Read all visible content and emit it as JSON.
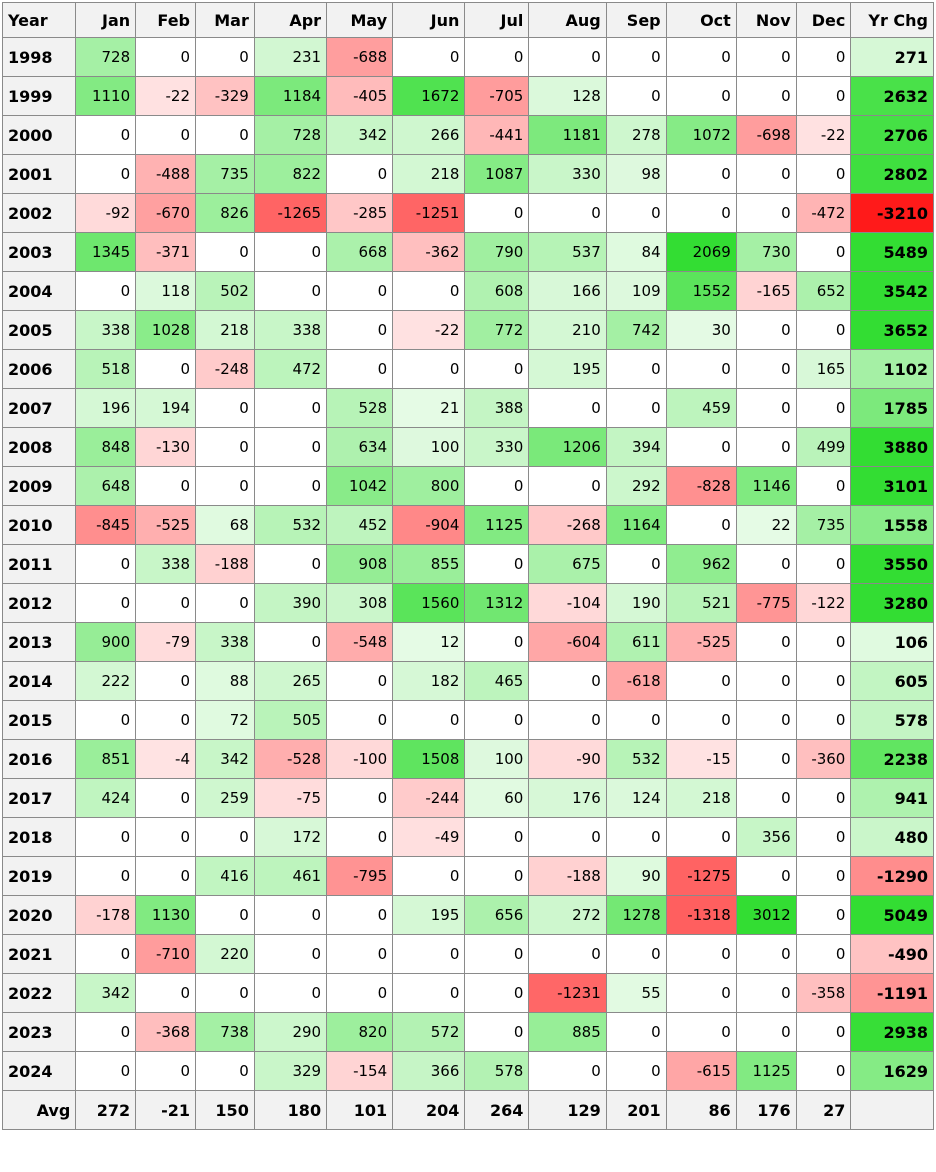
{
  "headers": [
    "Year",
    "Jan",
    "Feb",
    "Mar",
    "Apr",
    "May",
    "Jun",
    "Jul",
    "Aug",
    "Sep",
    "Oct",
    "Nov",
    "Dec",
    "Yr Chg"
  ],
  "rows": [
    {
      "year": "1998",
      "months": [
        728,
        0,
        0,
        231,
        -688,
        0,
        0,
        0,
        0,
        0,
        0,
        0
      ],
      "yr_chg": 271
    },
    {
      "year": "1999",
      "months": [
        1110,
        -22,
        -329,
        1184,
        -405,
        1672,
        -705,
        128,
        0,
        0,
        0,
        0
      ],
      "yr_chg": 2632
    },
    {
      "year": "2000",
      "months": [
        0,
        0,
        0,
        728,
        342,
        266,
        -441,
        1181,
        278,
        1072,
        -698,
        -22
      ],
      "yr_chg": 2706
    },
    {
      "year": "2001",
      "months": [
        0,
        -488,
        735,
        822,
        0,
        218,
        1087,
        330,
        98,
        0,
        0,
        0
      ],
      "yr_chg": 2802
    },
    {
      "year": "2002",
      "months": [
        -92,
        -670,
        826,
        -1265,
        -285,
        -1251,
        0,
        0,
        0,
        0,
        0,
        -472
      ],
      "yr_chg": -3210
    },
    {
      "year": "2003",
      "months": [
        1345,
        -371,
        0,
        0,
        668,
        -362,
        790,
        537,
        84,
        2069,
        730,
        0
      ],
      "yr_chg": 5489
    },
    {
      "year": "2004",
      "months": [
        0,
        118,
        502,
        0,
        0,
        0,
        608,
        166,
        109,
        1552,
        -165,
        652
      ],
      "yr_chg": 3542
    },
    {
      "year": "2005",
      "months": [
        338,
        1028,
        218,
        338,
        0,
        -22,
        772,
        210,
        742,
        30,
        0,
        0
      ],
      "yr_chg": 3652
    },
    {
      "year": "2006",
      "months": [
        518,
        0,
        -248,
        472,
        0,
        0,
        0,
        195,
        0,
        0,
        0,
        165
      ],
      "yr_chg": 1102
    },
    {
      "year": "2007",
      "months": [
        196,
        194,
        0,
        0,
        528,
        21,
        388,
        0,
        0,
        459,
        0,
        0
      ],
      "yr_chg": 1785
    },
    {
      "year": "2008",
      "months": [
        848,
        -130,
        0,
        0,
        634,
        100,
        330,
        1206,
        394,
        0,
        0,
        499
      ],
      "yr_chg": 3880
    },
    {
      "year": "2009",
      "months": [
        648,
        0,
        0,
        0,
        1042,
        800,
        0,
        0,
        292,
        -828,
        1146,
        0
      ],
      "yr_chg": 3101
    },
    {
      "year": "2010",
      "months": [
        -845,
        -525,
        68,
        532,
        452,
        -904,
        1125,
        -268,
        1164,
        0,
        22,
        735
      ],
      "yr_chg": 1558
    },
    {
      "year": "2011",
      "months": [
        0,
        338,
        -188,
        0,
        908,
        855,
        0,
        675,
        0,
        962,
        0,
        0
      ],
      "yr_chg": 3550
    },
    {
      "year": "2012",
      "months": [
        0,
        0,
        0,
        390,
        308,
        1560,
        1312,
        -104,
        190,
        521,
        -775,
        -122
      ],
      "yr_chg": 3280
    },
    {
      "year": "2013",
      "months": [
        900,
        -79,
        338,
        0,
        -548,
        12,
        0,
        -604,
        611,
        -525,
        0,
        0
      ],
      "yr_chg": 106
    },
    {
      "year": "2014",
      "months": [
        222,
        0,
        88,
        265,
        0,
        182,
        465,
        0,
        -618,
        0,
        0,
        0
      ],
      "yr_chg": 605
    },
    {
      "year": "2015",
      "months": [
        0,
        0,
        72,
        505,
        0,
        0,
        0,
        0,
        0,
        0,
        0,
        0
      ],
      "yr_chg": 578
    },
    {
      "year": "2016",
      "months": [
        851,
        -4,
        342,
        -528,
        -100,
        1508,
        100,
        -90,
        532,
        -15,
        0,
        -360
      ],
      "yr_chg": 2238
    },
    {
      "year": "2017",
      "months": [
        424,
        0,
        259,
        -75,
        0,
        -244,
        60,
        176,
        124,
        218,
        0,
        0
      ],
      "yr_chg": 941
    },
    {
      "year": "2018",
      "months": [
        0,
        0,
        0,
        172,
        0,
        -49,
        0,
        0,
        0,
        0,
        356,
        0
      ],
      "yr_chg": 480
    },
    {
      "year": "2019",
      "months": [
        0,
        0,
        416,
        461,
        -795,
        0,
        0,
        -188,
        90,
        -1275,
        0,
        0
      ],
      "yr_chg": -1290
    },
    {
      "year": "2020",
      "months": [
        -178,
        1130,
        0,
        0,
        0,
        195,
        656,
        272,
        1278,
        -1318,
        3012,
        0
      ],
      "yr_chg": 5049
    },
    {
      "year": "2021",
      "months": [
        0,
        -710,
        220,
        0,
        0,
        0,
        0,
        0,
        0,
        0,
        0,
        0
      ],
      "yr_chg": -490
    },
    {
      "year": "2022",
      "months": [
        342,
        0,
        0,
        0,
        0,
        0,
        0,
        -1231,
        55,
        0,
        0,
        -358
      ],
      "yr_chg": -1191
    },
    {
      "year": "2023",
      "months": [
        0,
        -368,
        738,
        290,
        820,
        572,
        0,
        885,
        0,
        0,
        0,
        0
      ],
      "yr_chg": 2938
    },
    {
      "year": "2024",
      "months": [
        0,
        0,
        0,
        329,
        -154,
        366,
        578,
        0,
        0,
        -615,
        1125,
        0
      ],
      "yr_chg": 1629
    }
  ],
  "avg": {
    "label": "Avg",
    "months": [
      272,
      -21,
      150,
      180,
      101,
      204,
      264,
      129,
      201,
      86,
      176,
      27
    ],
    "yr_chg": ""
  },
  "colors": {
    "header_bg": "#f2f2f2",
    "border": "#8a8a8a",
    "positive_strong": "#33dd33",
    "negative_strong": "#ff1a1a",
    "zero": "#ffffff"
  }
}
